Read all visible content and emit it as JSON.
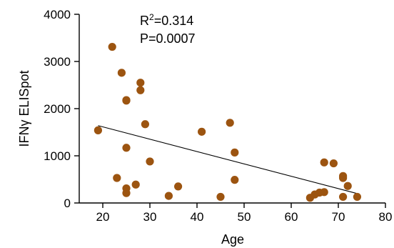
{
  "chart_data": {
    "type": "scatter",
    "xlabel": "Age",
    "ylabel": "IFNγ ELISpot",
    "xlim": [
      15,
      80
    ],
    "ylim": [
      0,
      4000
    ],
    "xticks": [
      20,
      30,
      40,
      50,
      60,
      70,
      80
    ],
    "yticks": [
      0,
      1000,
      2000,
      3000,
      4000
    ],
    "grid": false,
    "point_color": "#9C5410",
    "annotations": {
      "r2_prefix": "R",
      "r2_sup": "2",
      "r2_value": "=0.314",
      "p_text": "P=0.0007"
    },
    "fit_line": {
      "x": [
        19,
        74
      ],
      "y": [
        1640,
        200
      ]
    },
    "points": [
      {
        "x": 19,
        "y": 1540
      },
      {
        "x": 22,
        "y": 3310
      },
      {
        "x": 23,
        "y": 530
      },
      {
        "x": 24,
        "y": 2760
      },
      {
        "x": 25,
        "y": 2180
      },
      {
        "x": 25,
        "y": 2170
      },
      {
        "x": 25,
        "y": 1170
      },
      {
        "x": 25,
        "y": 310
      },
      {
        "x": 25,
        "y": 210
      },
      {
        "x": 27,
        "y": 390
      },
      {
        "x": 28,
        "y": 2550
      },
      {
        "x": 28,
        "y": 2390
      },
      {
        "x": 29,
        "y": 1670
      },
      {
        "x": 30,
        "y": 880
      },
      {
        "x": 34,
        "y": 150
      },
      {
        "x": 36,
        "y": 350
      },
      {
        "x": 41,
        "y": 1510
      },
      {
        "x": 45,
        "y": 130
      },
      {
        "x": 47,
        "y": 1700
      },
      {
        "x": 48,
        "y": 1070
      },
      {
        "x": 48,
        "y": 490
      },
      {
        "x": 64,
        "y": 110
      },
      {
        "x": 65,
        "y": 180
      },
      {
        "x": 66,
        "y": 220
      },
      {
        "x": 67,
        "y": 860
      },
      {
        "x": 67,
        "y": 230
      },
      {
        "x": 69,
        "y": 840
      },
      {
        "x": 71,
        "y": 570
      },
      {
        "x": 71,
        "y": 530
      },
      {
        "x": 71,
        "y": 130
      },
      {
        "x": 72,
        "y": 360
      },
      {
        "x": 74,
        "y": 130
      }
    ]
  }
}
